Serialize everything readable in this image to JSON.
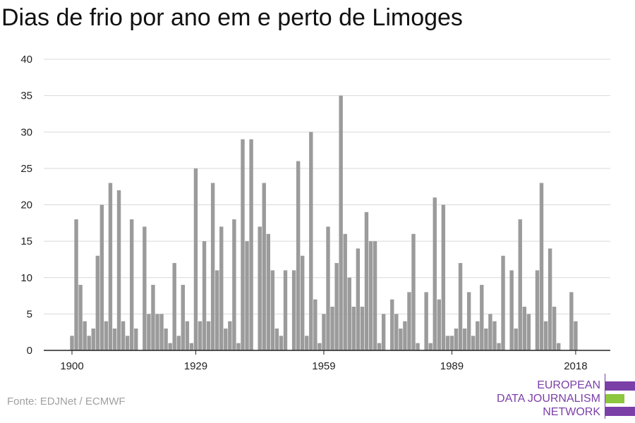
{
  "title": "Dias de frio por ano em e perto de Limoges",
  "source": "Fonte: EDJNet / ECMWF",
  "logo": {
    "lines": [
      "EUROPEAN",
      "DATA JOURNALISM",
      "NETWORK"
    ]
  },
  "colors": {
    "bar": "#9b9b9b",
    "grid": "#d9d9d9",
    "axis": "#222222",
    "logo_purple": "#7b3fa8",
    "logo_green": "#8dc63f"
  },
  "chart_data": {
    "type": "bar",
    "title": "Dias de frio por ano em e perto de Limoges",
    "xlabel": "",
    "ylabel": "",
    "ylim": [
      0,
      40
    ],
    "yticks": [
      0,
      5,
      10,
      15,
      20,
      25,
      30,
      35,
      40
    ],
    "xticks": [
      1900,
      1929,
      1959,
      1989,
      2018
    ],
    "grid": true,
    "x": [
      1900,
      1901,
      1902,
      1903,
      1904,
      1905,
      1906,
      1907,
      1908,
      1909,
      1910,
      1911,
      1912,
      1913,
      1914,
      1915,
      1916,
      1917,
      1918,
      1919,
      1920,
      1921,
      1922,
      1923,
      1924,
      1925,
      1926,
      1927,
      1928,
      1929,
      1930,
      1931,
      1932,
      1933,
      1934,
      1935,
      1936,
      1937,
      1938,
      1939,
      1940,
      1941,
      1942,
      1943,
      1944,
      1945,
      1946,
      1947,
      1948,
      1949,
      1950,
      1951,
      1952,
      1953,
      1954,
      1955,
      1956,
      1957,
      1958,
      1959,
      1960,
      1961,
      1962,
      1963,
      1964,
      1965,
      1966,
      1967,
      1968,
      1969,
      1970,
      1971,
      1972,
      1973,
      1974,
      1975,
      1976,
      1977,
      1978,
      1979,
      1980,
      1981,
      1982,
      1983,
      1984,
      1985,
      1986,
      1987,
      1988,
      1989,
      1990,
      1991,
      1992,
      1993,
      1994,
      1995,
      1996,
      1997,
      1998,
      1999,
      2000,
      2001,
      2002,
      2003,
      2004,
      2005,
      2006,
      2007,
      2008,
      2009,
      2010,
      2011,
      2012,
      2013,
      2014,
      2015,
      2016,
      2017,
      2018
    ],
    "values": [
      2,
      18,
      9,
      4,
      2,
      3,
      13,
      20,
      4,
      23,
      3,
      22,
      4,
      2,
      18,
      3,
      0,
      17,
      5,
      9,
      5,
      5,
      3,
      1,
      12,
      2,
      9,
      4,
      1,
      25,
      4,
      15,
      4,
      23,
      11,
      17,
      3,
      4,
      18,
      1,
      29,
      15,
      29,
      0,
      17,
      23,
      16,
      11,
      3,
      2,
      11,
      0,
      11,
      26,
      13,
      2,
      30,
      7,
      1,
      5,
      17,
      6,
      12,
      35,
      16,
      10,
      6,
      14,
      6,
      19,
      15,
      15,
      1,
      5,
      0,
      7,
      5,
      3,
      4,
      8,
      16,
      1,
      0,
      8,
      1,
      21,
      7,
      20,
      2,
      2,
      3,
      12,
      3,
      8,
      2,
      4,
      9,
      3,
      5,
      4,
      1,
      13,
      0,
      11,
      3,
      18,
      6,
      5,
      0,
      11,
      23,
      4,
      14,
      6,
      1,
      0,
      0,
      8,
      4
    ]
  }
}
